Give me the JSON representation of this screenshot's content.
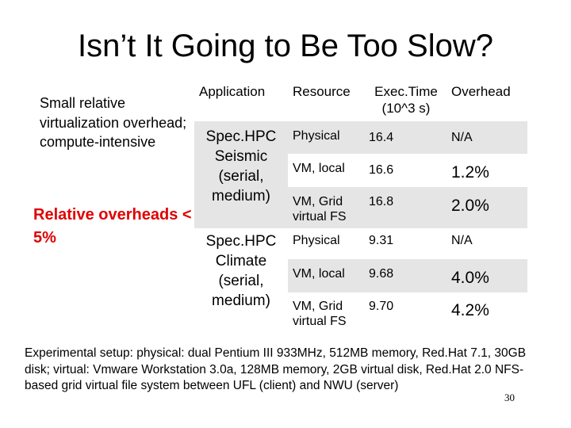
{
  "title": "Isn’t It Going to Be Too Slow?",
  "side": {
    "note": "Small relative virtualization overhead; compute-intensive",
    "highlight": "Relative overheads < 5%"
  },
  "table": {
    "headers": {
      "application": "Application",
      "resource": "Resource",
      "exec_time": "Exec.Time (10^3 s)",
      "overhead": "Overhead"
    },
    "groups": [
      {
        "application": "Spec.HPC Seismic (serial, medium)",
        "rows": [
          {
            "resource": "Physical",
            "time": "16.4",
            "overhead": "N/A"
          },
          {
            "resource": "VM, local",
            "time": "16.6",
            "overhead": "1.2%"
          },
          {
            "resource": "VM, Grid virtual FS",
            "time": "16.8",
            "overhead": "2.0%"
          }
        ]
      },
      {
        "application": "Spec.HPC Climate (serial, medium)",
        "rows": [
          {
            "resource": "Physical",
            "time": "9.31",
            "overhead": "N/A"
          },
          {
            "resource": "VM, local",
            "time": "9.68",
            "overhead": "4.0%"
          },
          {
            "resource": "VM, Grid virtual FS",
            "time": "9.70",
            "overhead": "4.2%"
          }
        ]
      }
    ]
  },
  "footer": "Experimental setup: physical: dual Pentium III 933MHz, 512MB memory, Red.Hat 7.1, 30GB disk; virtual: Vmware Workstation 3.0a, 128MB memory, 2GB virtual disk, Red.Hat 2.0 NFS-based grid virtual file system between UFL (client) and NWU (server)",
  "page_number": "30"
}
